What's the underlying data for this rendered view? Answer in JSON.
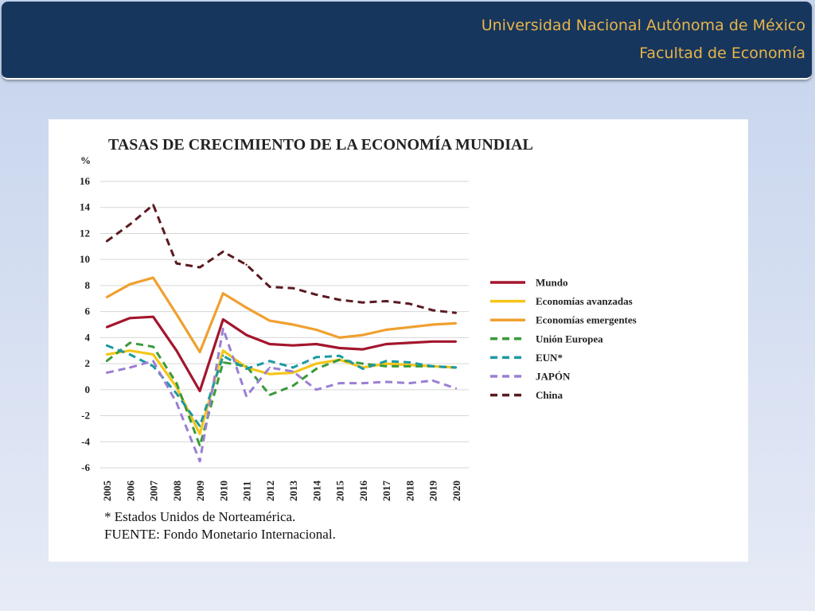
{
  "header": {
    "university": "Universidad Nacional Autónoma de México",
    "faculty": "Facultad de Economía"
  },
  "footnotes": {
    "asterisk": "* Estados Unidos de Norteamérica.",
    "source": "FUENTE: Fondo Monetario Internacional."
  },
  "chart_data": {
    "type": "line",
    "title": "TASAS DE CRECIMIENTO DE LA ECONOMÍA MUNDIAL",
    "ylabel": "%",
    "xlabel": "",
    "ylim": [
      -6,
      16
    ],
    "yticks": [
      16,
      14,
      12,
      10,
      8,
      6,
      4,
      2,
      0,
      -2,
      -4,
      -6
    ],
    "grid": true,
    "legend_position": "right",
    "x": [
      "2005",
      "2006",
      "2007",
      "2008",
      "2009",
      "2010",
      "2011",
      "2012",
      "2013",
      "2014",
      "2015",
      "2016",
      "2017",
      "2018",
      "2019",
      "2020"
    ],
    "series": [
      {
        "name": "Mundo",
        "color": "#a3162d",
        "dash": false,
        "values": [
          4.8,
          5.5,
          5.6,
          3.0,
          -0.1,
          5.4,
          4.2,
          3.5,
          3.4,
          3.5,
          3.2,
          3.1,
          3.5,
          3.6,
          3.7,
          3.7
        ]
      },
      {
        "name": "Economías avanzadas",
        "color": "#f5c518",
        "dash": false,
        "values": [
          2.7,
          3.0,
          2.7,
          0.2,
          -3.4,
          3.0,
          1.7,
          1.2,
          1.3,
          2.0,
          2.3,
          1.7,
          2.0,
          1.9,
          1.8,
          1.7
        ]
      },
      {
        "name": "Economías emergentes",
        "color": "#f0a030",
        "dash": false,
        "values": [
          7.1,
          8.1,
          8.6,
          5.8,
          2.9,
          7.4,
          6.3,
          5.3,
          5.0,
          4.6,
          4.0,
          4.2,
          4.6,
          4.8,
          5.0,
          5.1
        ]
      },
      {
        "name": "Unión Europea",
        "color": "#3a9a3a",
        "dash": true,
        "values": [
          2.2,
          3.6,
          3.3,
          0.5,
          -4.3,
          2.1,
          1.8,
          -0.4,
          0.3,
          1.6,
          2.3,
          2.0,
          1.8,
          1.8,
          1.8,
          1.7
        ]
      },
      {
        "name": "EUN*",
        "color": "#1b9aa3",
        "dash": true,
        "values": [
          3.4,
          2.7,
          1.8,
          -0.3,
          -2.8,
          2.6,
          1.6,
          2.2,
          1.7,
          2.5,
          2.6,
          1.6,
          2.2,
          2.1,
          1.8,
          1.7
        ]
      },
      {
        "name": "JAPÓN",
        "color": "#9b7fd4",
        "dash": true,
        "values": [
          1.3,
          1.7,
          2.2,
          -1.0,
          -5.5,
          4.7,
          -0.5,
          1.7,
          1.4,
          0.0,
          0.5,
          0.5,
          0.6,
          0.5,
          0.7,
          0.1
        ]
      },
      {
        "name": "China",
        "color": "#5a1a20",
        "dash": true,
        "values": [
          11.4,
          12.7,
          14.2,
          9.7,
          9.4,
          10.6,
          9.6,
          7.9,
          7.8,
          7.3,
          6.9,
          6.7,
          6.8,
          6.6,
          6.1,
          5.9
        ]
      }
    ]
  }
}
